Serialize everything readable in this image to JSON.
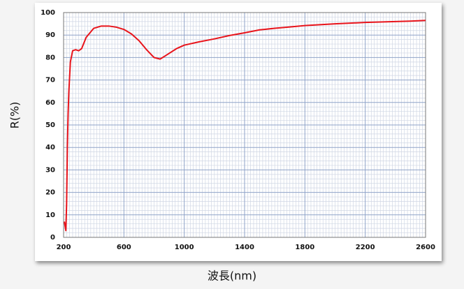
{
  "chart_data": {
    "type": "line",
    "xlabel": "波長(nm)",
    "ylabel": "R(%)",
    "xlim": [
      200,
      2600
    ],
    "xticks": [
      200,
      600,
      1000,
      1400,
      1800,
      2200,
      2600
    ],
    "ylim": [
      0,
      100
    ],
    "yticks": [
      0,
      10,
      20,
      30,
      40,
      50,
      60,
      70,
      80,
      90,
      100
    ],
    "grid": true,
    "xminorticks": [
      220,
      240,
      260,
      280,
      300,
      320,
      340,
      360,
      380,
      400,
      420,
      440,
      460,
      480,
      500,
      520,
      540,
      560,
      580,
      620,
      640,
      660,
      680,
      700,
      720,
      740,
      760,
      780,
      800,
      820,
      840,
      860,
      880,
      900,
      920,
      940,
      960,
      980,
      1020,
      1040,
      1060,
      1080,
      1100,
      1120,
      1140,
      1160,
      1180,
      1200,
      1220,
      1240,
      1260,
      1280,
      1300,
      1320,
      1340,
      1360,
      1380,
      1420,
      1440,
      1460,
      1480,
      1500,
      1520,
      1540,
      1560,
      1580,
      1600,
      1620,
      1640,
      1660,
      1680,
      1700,
      1720,
      1740,
      1760,
      1780,
      1820,
      1840,
      1860,
      1880,
      1900,
      1920,
      1940,
      1960,
      1980,
      2000,
      2020,
      2040,
      2060,
      2080,
      2100,
      2120,
      2140,
      2160,
      2180,
      2220,
      2240,
      2260,
      2280,
      2300,
      2320,
      2340,
      2360,
      2380,
      2400,
      2420,
      2440,
      2460,
      2480,
      2500,
      2520,
      2540,
      2560,
      2580
    ],
    "yminorticks": [
      2,
      4,
      6,
      8,
      12,
      14,
      16,
      18,
      22,
      24,
      26,
      28,
      32,
      34,
      36,
      38,
      42,
      44,
      46,
      48,
      52,
      54,
      56,
      58,
      62,
      64,
      66,
      68,
      72,
      74,
      76,
      78,
      82,
      84,
      86,
      88,
      92,
      94,
      96,
      98
    ],
    "series": [
      {
        "name": "R",
        "color": "#e8141b",
        "x": [
          205,
          210,
          215,
          220,
          225,
          230,
          235,
          245,
          260,
          280,
          300,
          320,
          350,
          400,
          450,
          500,
          550,
          600,
          650,
          700,
          750,
          800,
          840,
          880,
          950,
          1000,
          1100,
          1200,
          1300,
          1400,
          1500,
          1600,
          1700,
          1800,
          1900,
          2000,
          2100,
          2200,
          2300,
          2400,
          2500,
          2600
        ],
        "values": [
          7,
          5,
          3,
          15,
          40,
          55,
          65,
          78,
          83,
          83.5,
          83,
          84,
          89,
          93,
          94,
          94,
          93.5,
          92.5,
          90.5,
          87.5,
          83.5,
          80,
          79.3,
          81,
          84,
          85.5,
          87,
          88.3,
          89.8,
          91,
          92.3,
          93,
          93.6,
          94.2,
          94.6,
          95,
          95.3,
          95.6,
          95.8,
          96,
          96.2,
          96.5
        ]
      }
    ]
  }
}
